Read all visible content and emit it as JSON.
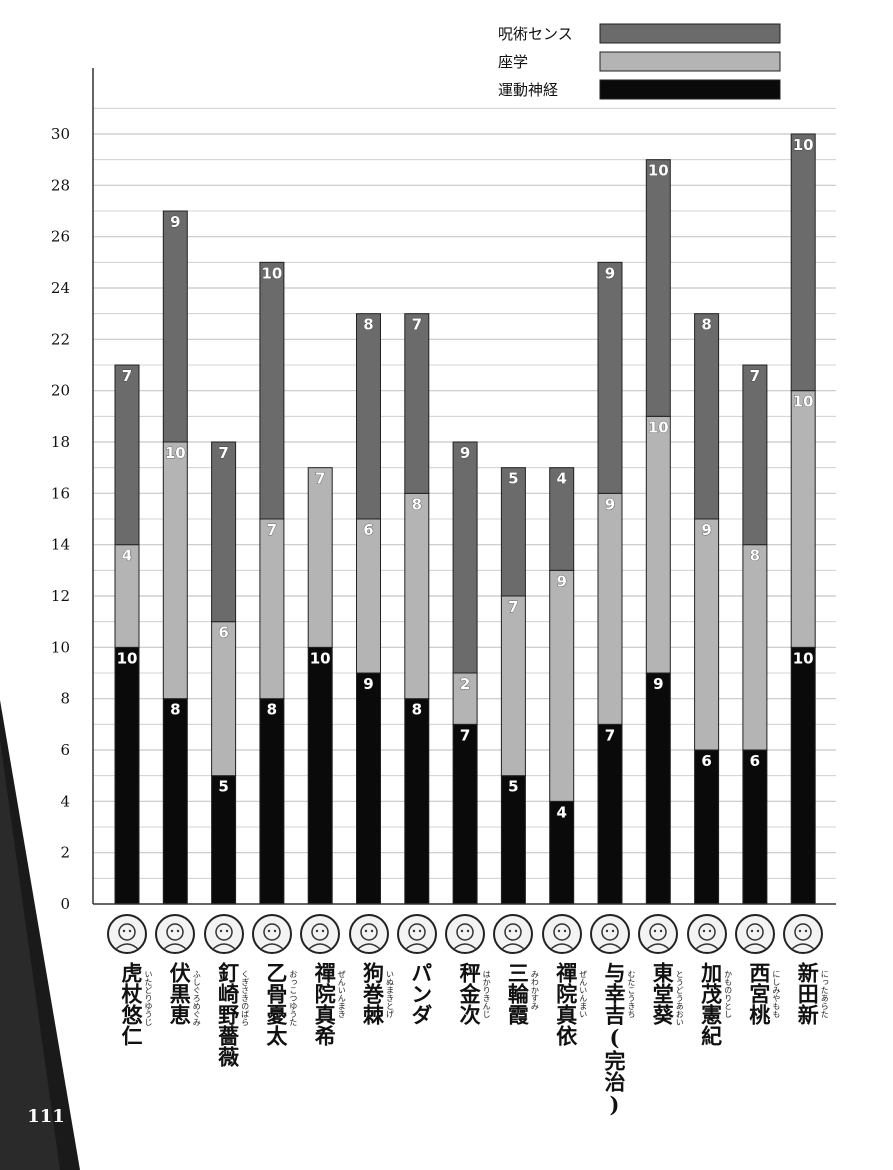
{
  "page_number": "111",
  "colors": {
    "jujutsu_sense": "#6b6b6b",
    "academics": "#b4b4b4",
    "athletics": "#0a0a0a",
    "gridline": "#c8c8c8"
  },
  "legend": [
    {
      "label": "呪術センス",
      "series_key": "jujutsu_sense",
      "icon": "dark-gray-bar"
    },
    {
      "label": "座学",
      "series_key": "academics",
      "icon": "light-gray-bar"
    },
    {
      "label": "運動神経",
      "series_key": "athletics",
      "icon": "black-bar"
    }
  ],
  "characters": [
    {
      "name": "虎杖悠仁",
      "reading": "いたどりゆうじ",
      "avatar": "itadori-face-icon"
    },
    {
      "name": "伏黒恵",
      "reading": "ふしぐろめぐみ",
      "avatar": "fushiguro-face-icon"
    },
    {
      "name": "釘崎野薔薇",
      "reading": "くぎさきのばら",
      "avatar": "kugisaki-face-icon"
    },
    {
      "name": "乙骨憂太",
      "reading": "おっこつゆうた",
      "avatar": "okkotsu-face-icon"
    },
    {
      "name": "禪院真希",
      "reading": "ぜんいんまき",
      "avatar": "maki-face-icon"
    },
    {
      "name": "狗巻棘",
      "reading": "いぬまきとげ",
      "avatar": "inumaki-face-icon"
    },
    {
      "name": "パンダ",
      "reading": "",
      "avatar": "panda-face-icon"
    },
    {
      "name": "秤金次",
      "reading": "はかりきんじ",
      "avatar": "hakari-face-icon"
    },
    {
      "name": "三輪霞",
      "reading": "みわかすみ",
      "avatar": "miwa-face-icon"
    },
    {
      "name": "禪院真依",
      "reading": "ぜんいんまい",
      "avatar": "mai-face-icon"
    },
    {
      "name": "与幸吉(完治)",
      "reading": "むたこうきち",
      "avatar": "muta-face-icon"
    },
    {
      "name": "東堂葵",
      "reading": "とうどうあおい",
      "avatar": "todo-face-icon"
    },
    {
      "name": "加茂憲紀",
      "reading": "かものりとし",
      "avatar": "kamo-face-icon"
    },
    {
      "name": "西宮桃",
      "reading": "にしみやもも",
      "avatar": "nishimiya-face-icon"
    },
    {
      "name": "新田新",
      "reading": "にったあらた",
      "avatar": "nitta-face-icon"
    }
  ],
  "chart_data": {
    "type": "bar",
    "stacked": true,
    "categories": [
      "虎杖悠仁",
      "伏黒恵",
      "釘崎野薔薇",
      "乙骨憂太",
      "禪院真希",
      "狗巻棘",
      "パンダ",
      "秤金次",
      "三輪霞",
      "禪院真依",
      "与幸吉(完治)",
      "東堂葵",
      "加茂憲紀",
      "西宮桃",
      "新田新"
    ],
    "series": [
      {
        "name": "運動神経",
        "key": "athletics",
        "values": [
          10,
          8,
          5,
          8,
          10,
          9,
          8,
          7,
          5,
          4,
          7,
          9,
          6,
          6,
          10
        ]
      },
      {
        "name": "座学",
        "key": "academics",
        "values": [
          4,
          10,
          6,
          7,
          7,
          6,
          8,
          2,
          7,
          9,
          9,
          10,
          9,
          8,
          10
        ]
      },
      {
        "name": "呪術センス",
        "key": "jujutsu_sense",
        "values": [
          7,
          9,
          7,
          10,
          0,
          8,
          7,
          9,
          5,
          4,
          9,
          10,
          8,
          7,
          10
        ]
      }
    ],
    "y_ticks": [
      "0",
      "2",
      "4",
      "6",
      "8",
      "10",
      "12",
      "14",
      "16",
      "18",
      "20",
      "22",
      "24",
      "26",
      "28",
      "30"
    ],
    "ylim": [
      0,
      31
    ],
    "gridlines": true,
    "legend_position": "top-right"
  }
}
